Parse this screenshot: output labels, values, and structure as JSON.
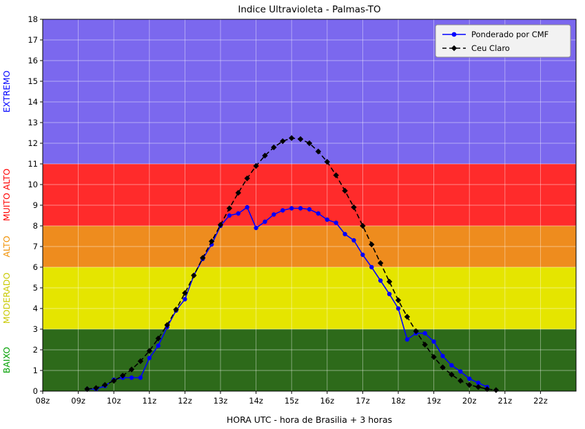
{
  "title": "Indice Ultravioleta - Palmas-TO",
  "xlabel": "HORA UTC - hora de Brasilia + 3 horas",
  "legend": {
    "entries": [
      {
        "label": "Ponderado por CMF",
        "color": "#0000ff",
        "marker": "circle",
        "dash": "solid"
      },
      {
        "label": "Ceu Claro",
        "color": "#000000",
        "marker": "diamond",
        "dash": "dashed"
      }
    ],
    "background": "#f2f2f2",
    "border": "#8c8c8c",
    "position": "top-right"
  },
  "bands": [
    {
      "label": "BAIXO",
      "from": 0,
      "to": 3,
      "color": "#2d6a1a",
      "label_color": "#00a000"
    },
    {
      "label": "MODERADO",
      "from": 3,
      "to": 6,
      "color": "#e5e500",
      "label_color": "#c9c900"
    },
    {
      "label": "ALTO",
      "from": 6,
      "to": 8,
      "color": "#ee8c1e",
      "label_color": "#f09000"
    },
    {
      "label": "MUITO ALTO",
      "from": 8,
      "to": 11,
      "color": "#ff2b2b",
      "label_color": "#ff0000"
    },
    {
      "label": "EXTREMO",
      "from": 11,
      "to": 18,
      "color": "#7b68ee",
      "label_color": "#0000ff"
    }
  ],
  "chart_data": {
    "type": "line",
    "title": "Indice Ultravioleta - Palmas-TO",
    "xlabel": "HORA UTC - hora de Brasilia + 3 horas",
    "ylabel": "",
    "xlim": [
      8,
      23
    ],
    "ylim": [
      0,
      18
    ],
    "grid": true,
    "x_tick_values": [
      8,
      9,
      10,
      11,
      12,
      13,
      14,
      15,
      16,
      17,
      18,
      19,
      20,
      21,
      22
    ],
    "x_tick_labels": [
      "08z",
      "09z",
      "10z",
      "11z",
      "12z",
      "13z",
      "14z",
      "15z",
      "16z",
      "17z",
      "18z",
      "19z",
      "20z",
      "21z",
      "22z"
    ],
    "y_tick_values": [
      0,
      1,
      2,
      3,
      4,
      5,
      6,
      7,
      8,
      9,
      10,
      11,
      12,
      13,
      14,
      15,
      16,
      17,
      18
    ],
    "series": [
      {
        "name": "Ponderado por CMF",
        "color": "#0000ff",
        "marker": "circle",
        "dash": "solid",
        "x": [
          9.25,
          9.5,
          9.75,
          10,
          10.25,
          10.5,
          10.75,
          11,
          11.25,
          11.5,
          11.75,
          12,
          12.25,
          12.5,
          12.75,
          13,
          13.25,
          13.5,
          13.75,
          14,
          14.25,
          14.5,
          14.75,
          15,
          15.25,
          15.5,
          15.75,
          16,
          16.25,
          16.5,
          16.75,
          17,
          17.25,
          17.5,
          17.75,
          18,
          18.25,
          18.5,
          18.75,
          19,
          19.25,
          19.5,
          19.75,
          20,
          20.25,
          20.5
        ],
        "y": [
          0.1,
          0.1,
          0.25,
          0.55,
          0.65,
          0.65,
          0.65,
          1.6,
          2.2,
          3.1,
          3.9,
          4.45,
          5.6,
          6.4,
          7.1,
          8.0,
          8.5,
          8.6,
          8.9,
          7.9,
          8.2,
          8.55,
          8.75,
          8.85,
          8.85,
          8.8,
          8.6,
          8.3,
          8.15,
          7.6,
          7.3,
          6.6,
          6.0,
          5.35,
          4.7,
          4.0,
          2.5,
          2.8,
          2.8,
          2.4,
          1.7,
          1.25,
          0.95,
          0.6,
          0.4,
          0.2
        ]
      },
      {
        "name": "Ceu Claro",
        "color": "#000000",
        "marker": "diamond",
        "dash": "dashed",
        "x": [
          9.25,
          9.5,
          9.75,
          10,
          10.25,
          10.5,
          10.75,
          11,
          11.25,
          11.5,
          11.75,
          12,
          12.25,
          12.5,
          12.75,
          13,
          13.25,
          13.5,
          13.75,
          14,
          14.25,
          14.5,
          14.75,
          15,
          15.25,
          15.5,
          15.75,
          16,
          16.25,
          16.5,
          16.75,
          17,
          17.25,
          17.5,
          17.75,
          18,
          18.25,
          18.5,
          18.75,
          19,
          19.25,
          19.5,
          19.75,
          20,
          20.25,
          20.5,
          20.75
        ],
        "y": [
          0.1,
          0.15,
          0.3,
          0.5,
          0.75,
          1.05,
          1.45,
          1.95,
          2.55,
          3.2,
          3.95,
          4.75,
          5.6,
          6.45,
          7.25,
          8.05,
          8.85,
          9.6,
          10.3,
          10.9,
          11.4,
          11.8,
          12.1,
          12.25,
          12.2,
          12.0,
          11.6,
          11.1,
          10.45,
          9.7,
          8.9,
          8.0,
          7.1,
          6.2,
          5.3,
          4.4,
          3.6,
          2.9,
          2.25,
          1.65,
          1.15,
          0.8,
          0.5,
          0.3,
          0.2,
          0.1,
          0.05
        ]
      }
    ]
  }
}
